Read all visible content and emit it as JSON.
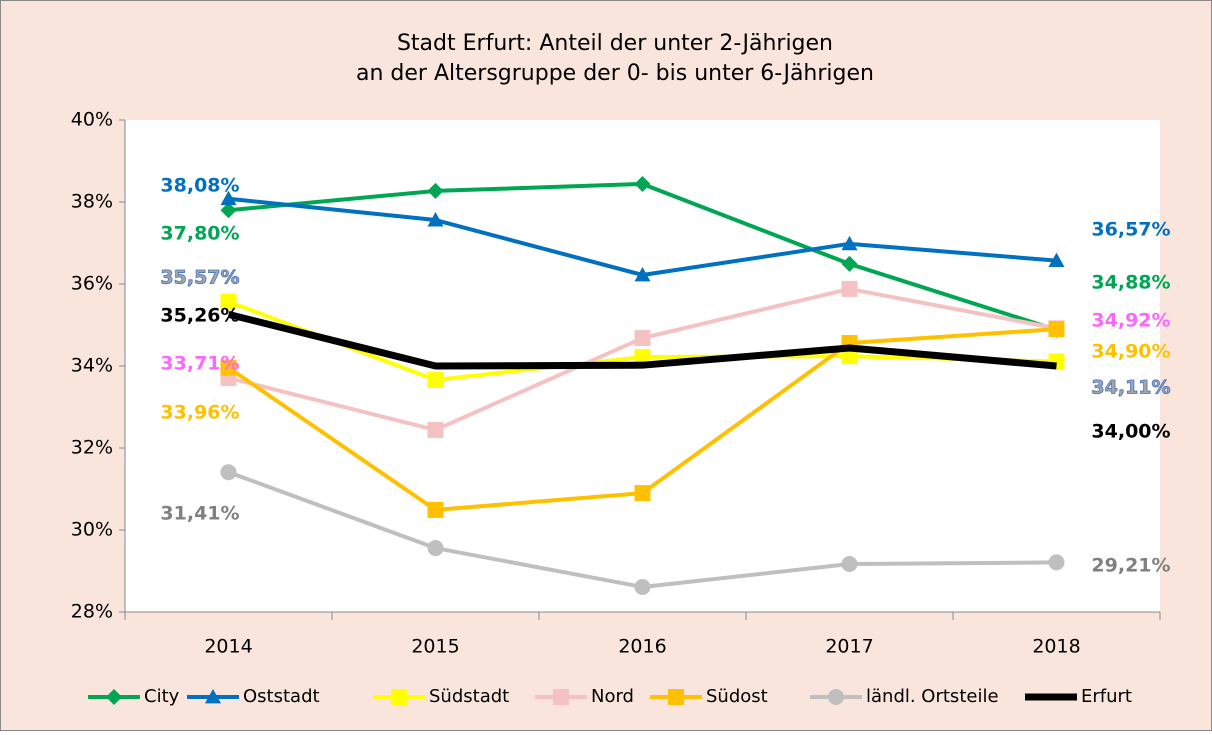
{
  "chart_data": {
    "type": "line",
    "title": [
      "Stadt Erfurt: Anteil der unter 2-Jährigen",
      "an der Altersgruppe der 0- bis unter 6-Jährigen"
    ],
    "categories": [
      "2014",
      "2015",
      "2016",
      "2017",
      "2018"
    ],
    "ylim": [
      28,
      40
    ],
    "yticks": [
      {
        "value": 28,
        "label": "28%"
      },
      {
        "value": 30,
        "label": "30%"
      },
      {
        "value": 32,
        "label": "32%"
      },
      {
        "value": 34,
        "label": "34%"
      },
      {
        "value": 36,
        "label": "36%"
      },
      {
        "value": 38,
        "label": "38%"
      },
      {
        "value": 40,
        "label": "40%"
      }
    ],
    "grid": false,
    "legend": "bottom",
    "series": [
      {
        "name": "City",
        "color": "#00a651",
        "marker": "diamond",
        "label_color": "#00a651",
        "values": [
          37.8,
          38.27,
          38.44,
          36.49,
          34.88
        ],
        "value_labels": [
          "37,80%",
          null,
          null,
          null,
          "34,88%"
        ]
      },
      {
        "name": "Oststadt",
        "color": "#0070c0",
        "marker": "triangle",
        "label_color": "#0070c0",
        "values": [
          38.08,
          37.56,
          36.22,
          36.98,
          36.57
        ],
        "value_labels": [
          "38,08%",
          null,
          null,
          null,
          "36,57%"
        ]
      },
      {
        "name": "Südstadt",
        "color": "#ffff00",
        "marker": "square",
        "label_color": "#a6a6a6",
        "values": [
          35.57,
          33.66,
          34.22,
          34.24,
          34.11
        ],
        "value_labels": [
          "35,57%",
          null,
          null,
          null,
          "34,11%"
        ]
      },
      {
        "name": "Nord",
        "color": "#f4c2c2",
        "marker": "square",
        "label_color": "#ff66ff",
        "values": [
          33.71,
          32.44,
          34.68,
          35.88,
          34.92
        ],
        "value_labels": [
          "33,71%",
          null,
          null,
          null,
          "34,92%"
        ]
      },
      {
        "name": "Südost",
        "color": "#ffc000",
        "marker": "square",
        "label_color": "#ffc000",
        "values": [
          33.96,
          30.49,
          30.9,
          34.56,
          34.9
        ],
        "value_labels": [
          "33,96%",
          null,
          null,
          null,
          "34,90%"
        ]
      },
      {
        "name": "ländl. Ortsteile",
        "color": "#bfbfbf",
        "marker": "circle",
        "label_color": "#808080",
        "values": [
          31.41,
          29.56,
          28.61,
          29.17,
          29.21
        ],
        "value_labels": [
          "31,41%",
          null,
          null,
          null,
          "29,21%"
        ]
      },
      {
        "name": "Erfurt",
        "color": "#000000",
        "marker": "none",
        "label_color": "#000000",
        "values": [
          35.26,
          34.0,
          34.02,
          34.44,
          34.0
        ],
        "value_labels": [
          "35,26%",
          null,
          null,
          null,
          "34,00%"
        ]
      }
    ]
  }
}
